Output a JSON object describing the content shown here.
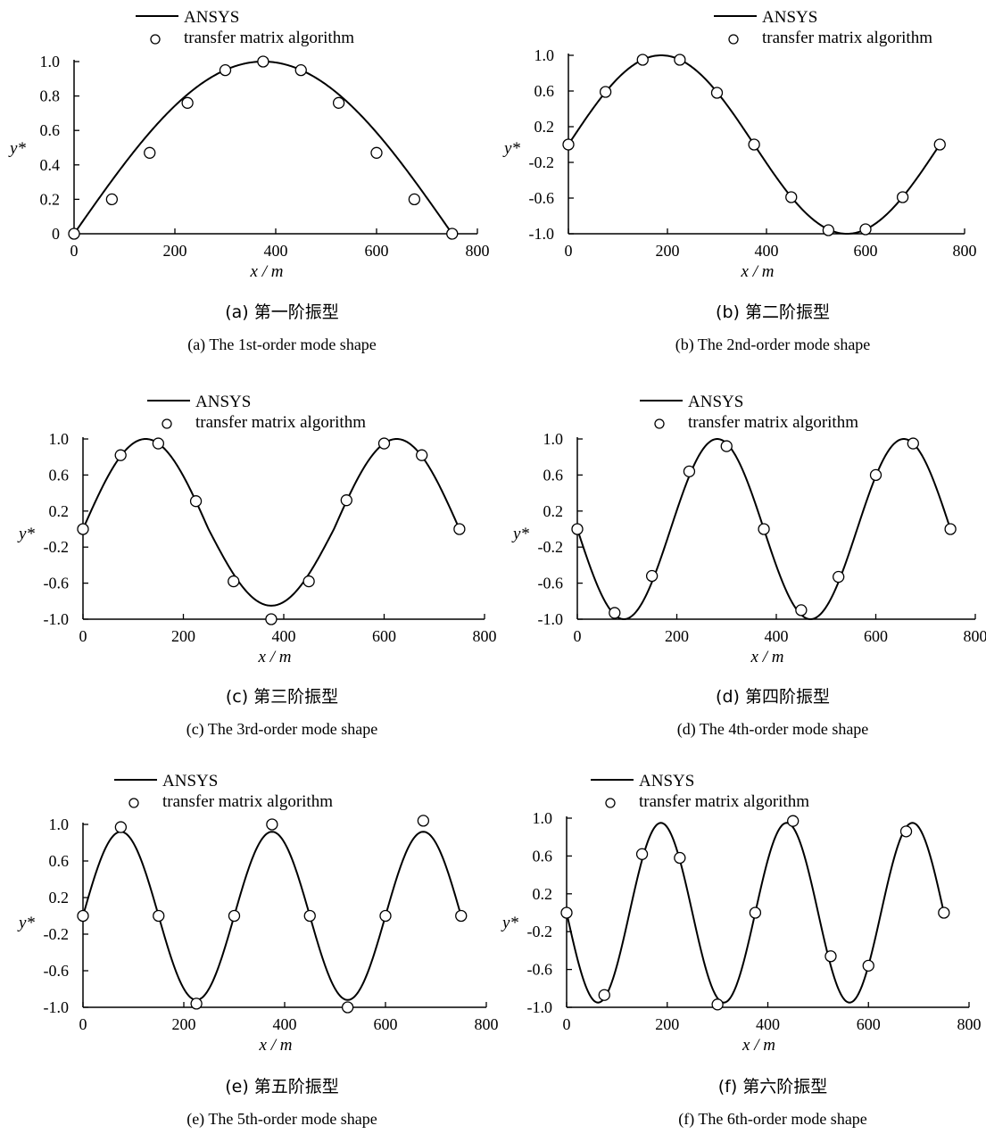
{
  "chart_data": [
    {
      "type": "line",
      "legend": [
        "ANSYS",
        "transfer matrix algorithm"
      ],
      "xlabel": "x / m",
      "ylabel": "y*",
      "xlim": [
        0,
        800
      ],
      "ylim": [
        0,
        1.0
      ],
      "xticks": [
        0,
        200,
        400,
        600,
        800
      ],
      "xtick_labels": [
        "0",
        "200",
        "400",
        "600",
        "800"
      ],
      "yticks": [
        0,
        0.2,
        0.4,
        0.6,
        0.8,
        1.0
      ],
      "ytick_labels": [
        "0",
        "0.2",
        "0.4",
        "0.6",
        "0.8",
        "1.0"
      ],
      "caption_cn": "(a) 第一阶振型",
      "caption_en": "(a) The 1st-order mode shape",
      "series": [
        {
          "name": "ANSYS",
          "style": "line",
          "function": "sin",
          "k": 1,
          "amp": 1.0,
          "span": 750
        },
        {
          "name": "transfer matrix algorithm",
          "style": "markers",
          "x": [
            0,
            75,
            150,
            225,
            300,
            375,
            450,
            525,
            600,
            675,
            750
          ],
          "y": [
            0,
            0.2,
            0.47,
            0.76,
            0.95,
            1.0,
            0.95,
            0.76,
            0.47,
            0.2,
            0
          ]
        }
      ]
    },
    {
      "type": "line",
      "legend": [
        "ANSYS",
        "transfer matrix algorithm"
      ],
      "xlabel": "x / m",
      "ylabel": "y*",
      "xlim": [
        0,
        800
      ],
      "ylim": [
        -1.0,
        1.0
      ],
      "xticks": [
        0,
        200,
        400,
        600,
        800
      ],
      "xtick_labels": [
        "0",
        "200",
        "400",
        "600",
        "800"
      ],
      "yticks": [
        -1.0,
        -0.6,
        -0.2,
        0.2,
        0.6,
        1.0
      ],
      "ytick_labels": [
        "-1.0",
        "-0.6",
        "-0.2",
        "0.2",
        "0.6",
        "1.0"
      ],
      "caption_cn": "(b) 第二阶振型",
      "caption_en": "(b) The 2nd-order mode shape",
      "series": [
        {
          "name": "ANSYS",
          "style": "line",
          "function": "sin",
          "k": 2,
          "amp": 1.0,
          "span": 750
        },
        {
          "name": "transfer matrix algorithm",
          "style": "markers",
          "x": [
            0,
            75,
            150,
            225,
            300,
            375,
            450,
            525,
            600,
            675,
            750
          ],
          "y": [
            0,
            0.59,
            0.95,
            0.95,
            0.58,
            0,
            -0.59,
            -0.96,
            -0.95,
            -0.59,
            0
          ]
        }
      ]
    },
    {
      "type": "line",
      "legend": [
        "ANSYS",
        "transfer matrix algorithm"
      ],
      "xlabel": "x / m",
      "ylabel": "y*",
      "xlim": [
        0,
        800
      ],
      "ylim": [
        -1.0,
        1.0
      ],
      "xticks": [
        0,
        200,
        400,
        600,
        800
      ],
      "xtick_labels": [
        "0",
        "200",
        "400",
        "600",
        "800"
      ],
      "yticks": [
        -1.0,
        -0.6,
        -0.2,
        0.2,
        0.6,
        1.0
      ],
      "ytick_labels": [
        "-1.0",
        "-0.6",
        "-0.2",
        "0.2",
        "0.6",
        "1.0"
      ],
      "caption_cn": "(c) 第三阶振型",
      "caption_en": "(c) The 3rd-order mode shape",
      "series": [
        {
          "name": "ANSYS",
          "style": "line",
          "function": "sin",
          "k": 3,
          "amp": 1.0,
          "span": 750,
          "mid_amp": 0.85
        },
        {
          "name": "transfer matrix algorithm",
          "style": "markers",
          "x": [
            0,
            75,
            150,
            225,
            300,
            375,
            450,
            525,
            600,
            675,
            750
          ],
          "y": [
            0,
            0.82,
            0.95,
            0.31,
            -0.58,
            -1.0,
            -0.58,
            0.32,
            0.95,
            0.82,
            0
          ]
        }
      ]
    },
    {
      "type": "line",
      "legend": [
        "ANSYS",
        "transfer matrix algorithm"
      ],
      "xlabel": "x / m",
      "ylabel": "y*",
      "xlim": [
        0,
        800
      ],
      "ylim": [
        -1.0,
        1.0
      ],
      "xticks": [
        0,
        200,
        400,
        600,
        800
      ],
      "xtick_labels": [
        "0",
        "200",
        "400",
        "600",
        "800"
      ],
      "yticks": [
        -1.0,
        -0.6,
        -0.2,
        0.2,
        0.6,
        1.0
      ],
      "ytick_labels": [
        "-1.0",
        "-0.6",
        "-0.2",
        "0.2",
        "0.6",
        "1.0"
      ],
      "caption_cn": "(d) 第四阶振型",
      "caption_en": "(d) The 4th-order mode shape",
      "series": [
        {
          "name": "ANSYS",
          "style": "line",
          "function": "sin",
          "k": 4,
          "amp": -1.0,
          "span": 750
        },
        {
          "name": "transfer matrix algorithm",
          "style": "markers",
          "x": [
            0,
            75,
            150,
            225,
            300,
            375,
            450,
            525,
            600,
            675,
            750
          ],
          "y": [
            0,
            -0.93,
            -0.52,
            0.64,
            0.92,
            0,
            -0.9,
            -0.53,
            0.6,
            0.95,
            0
          ]
        }
      ]
    },
    {
      "type": "line",
      "legend": [
        "ANSYS",
        "transfer matrix algorithm"
      ],
      "xlabel": "x / m",
      "ylabel": "y*",
      "xlim": [
        0,
        800
      ],
      "ylim": [
        -1.0,
        1.0
      ],
      "xticks": [
        0,
        200,
        400,
        600,
        800
      ],
      "xtick_labels": [
        "0",
        "200",
        "400",
        "600",
        "800"
      ],
      "yticks": [
        -1.0,
        -0.6,
        -0.2,
        0.2,
        0.6,
        1.0
      ],
      "ytick_labels": [
        "-1.0",
        "-0.6",
        "-0.2",
        "0.2",
        "0.6",
        "1.0"
      ],
      "caption_cn": "(e) 第五阶振型",
      "caption_en": "(e) The 5th-order mode shape",
      "series": [
        {
          "name": "ANSYS",
          "style": "line",
          "function": "sin",
          "k": 5,
          "amp": 0.92,
          "span": 750
        },
        {
          "name": "transfer matrix algorithm",
          "style": "markers",
          "x": [
            0,
            75,
            150,
            225,
            300,
            375,
            450,
            525,
            600,
            675,
            750
          ],
          "y": [
            0,
            0.97,
            0,
            -0.96,
            0,
            1.0,
            0,
            -1.0,
            0,
            1.04,
            0
          ]
        }
      ]
    },
    {
      "type": "line",
      "legend": [
        "ANSYS",
        "transfer matrix algorithm"
      ],
      "xlabel": "x / m",
      "ylabel": "y*",
      "xlim": [
        0,
        800
      ],
      "ylim": [
        -1.0,
        1.0
      ],
      "xticks": [
        0,
        200,
        400,
        600,
        800
      ],
      "xtick_labels": [
        "0",
        "200",
        "400",
        "600",
        "800"
      ],
      "yticks": [
        -1.0,
        -0.6,
        -0.2,
        0.2,
        0.6,
        1.0
      ],
      "ytick_labels": [
        "-1.0",
        "-0.6",
        "-0.2",
        "0.2",
        "0.6",
        "1.0"
      ],
      "caption_cn": "(f) 第六阶振型",
      "caption_en": "(f) The 6th-order mode shape",
      "series": [
        {
          "name": "ANSYS",
          "style": "line",
          "function": "sin",
          "k": 6,
          "amp": -0.95,
          "span": 750
        },
        {
          "name": "transfer matrix algorithm",
          "style": "markers",
          "x": [
            0,
            75,
            150,
            225,
            300,
            375,
            450,
            525,
            600,
            675,
            750
          ],
          "y": [
            0,
            -0.87,
            0.62,
            0.58,
            -0.97,
            0,
            0.97,
            -0.46,
            -0.56,
            0.86,
            0
          ]
        }
      ]
    }
  ]
}
